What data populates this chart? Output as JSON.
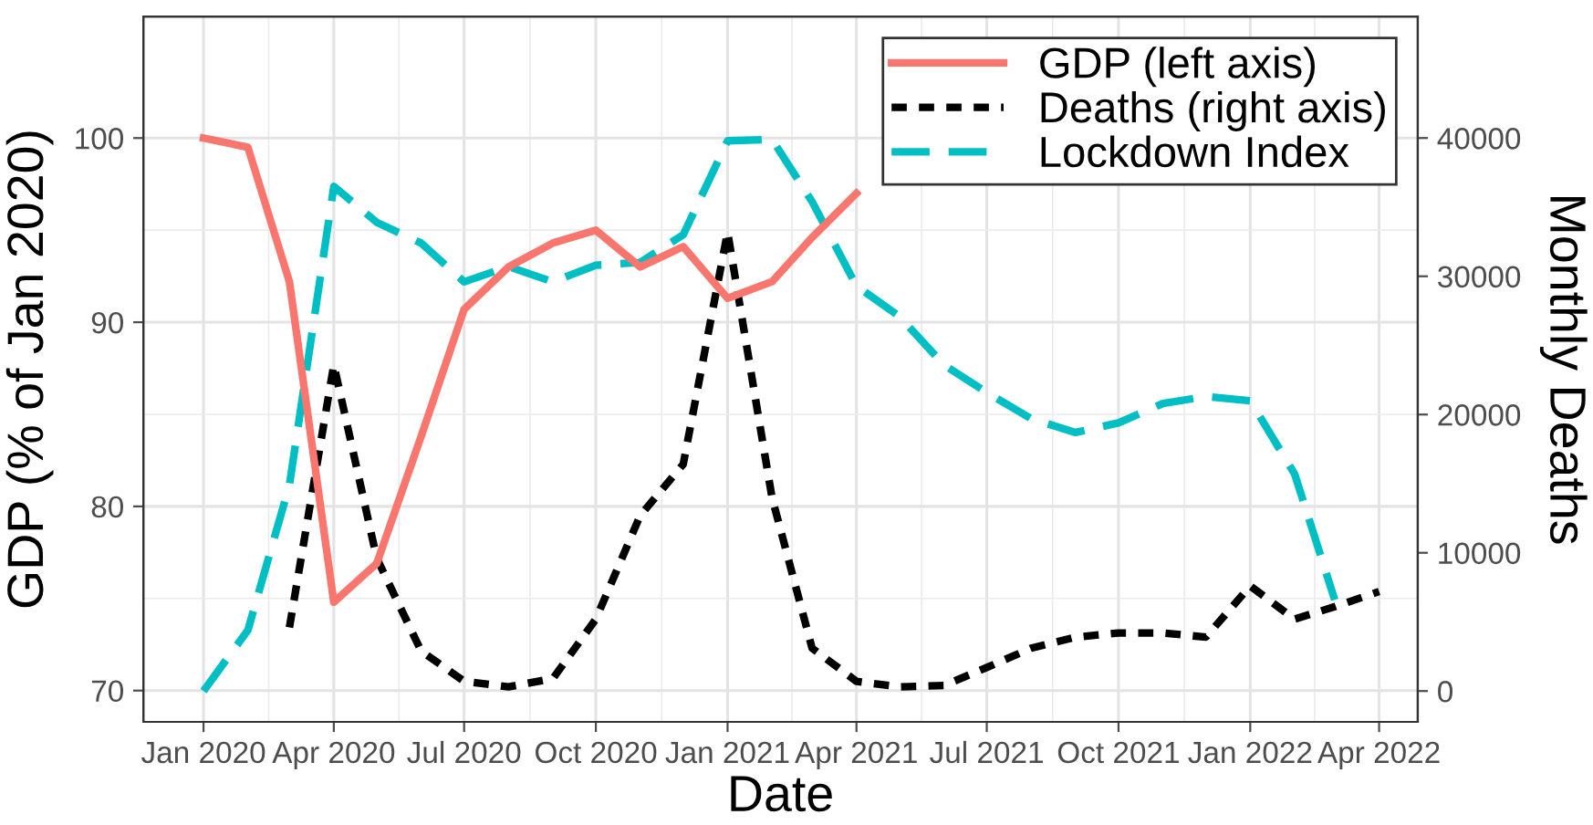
{
  "chart_data": {
    "type": "line",
    "xlabel": "Date",
    "ylabel": "GDP (% of Jan 2020)",
    "y2label": "Monthly Deaths",
    "x": [
      "2020-01",
      "2020-02",
      "2020-03",
      "2020-04",
      "2020-05",
      "2020-06",
      "2020-07",
      "2020-08",
      "2020-09",
      "2020-10",
      "2020-11",
      "2020-12",
      "2021-01",
      "2021-02",
      "2021-03",
      "2021-04",
      "2021-05",
      "2021-06",
      "2021-07",
      "2021-08",
      "2021-09",
      "2021-10",
      "2021-11",
      "2021-12",
      "2022-01",
      "2022-02",
      "2022-03",
      "2022-04"
    ],
    "series": [
      {
        "name": "GDP (left axis)",
        "color": "#f8766d",
        "line_style": "solid",
        "values": [
          100,
          99.5,
          92.2,
          74.8,
          76.9,
          83.8,
          90.7,
          93.0,
          94.3,
          95.0,
          93.0,
          94.1,
          91.3,
          92.2,
          94.6,
          97.0,
          null,
          null,
          null,
          null,
          null,
          null,
          null,
          null,
          null,
          null,
          null,
          null
        ]
      },
      {
        "name": "Deaths (right axis)",
        "color": "#000000",
        "line_style": "dotted",
        "axis": "y2",
        "values": [
          null,
          null,
          4600,
          23600,
          9600,
          2900,
          700,
          300,
          900,
          5200,
          12700,
          16400,
          33200,
          14000,
          3100,
          700,
          300,
          400,
          1700,
          3100,
          3900,
          4200,
          4200,
          3900,
          7600,
          5200,
          6100,
          7200
        ]
      },
      {
        "name": "Lockdown Index",
        "color": "#00bfc4",
        "line_style": "dashed",
        "axis": "y2",
        "values": [
          0,
          4400,
          14900,
          36500,
          33900,
          32400,
          29600,
          30700,
          29600,
          30800,
          31000,
          33000,
          39800,
          39900,
          35400,
          29300,
          27100,
          23600,
          21600,
          19700,
          18700,
          19400,
          20800,
          21300,
          21000,
          15700,
          6600,
          null
        ]
      }
    ],
    "xlim": [
      "2019-11-20",
      "2022-04-28"
    ],
    "xticks": [
      {
        "value": "2020-01",
        "label": "Jan 2020"
      },
      {
        "value": "2020-04",
        "label": "Apr 2020"
      },
      {
        "value": "2020-07",
        "label": "Jul 2020"
      },
      {
        "value": "2020-10",
        "label": "Oct 2020"
      },
      {
        "value": "2021-01",
        "label": "Jan 2021"
      },
      {
        "value": "2021-04",
        "label": "Apr 2021"
      },
      {
        "value": "2021-07",
        "label": "Jul 2021"
      },
      {
        "value": "2021-10",
        "label": "Oct 2021"
      },
      {
        "value": "2022-01",
        "label": "Jan 2022"
      },
      {
        "value": "2022-04",
        "label": "Apr 2022"
      }
    ],
    "ylim": [
      68.3,
      106.6
    ],
    "yticks": [
      70,
      80,
      90,
      100
    ],
    "y2lim": [
      -2230,
      48790
    ],
    "y2ticks": [
      0,
      10000,
      20000,
      30000,
      40000
    ],
    "grid": true,
    "legend": "top right"
  }
}
